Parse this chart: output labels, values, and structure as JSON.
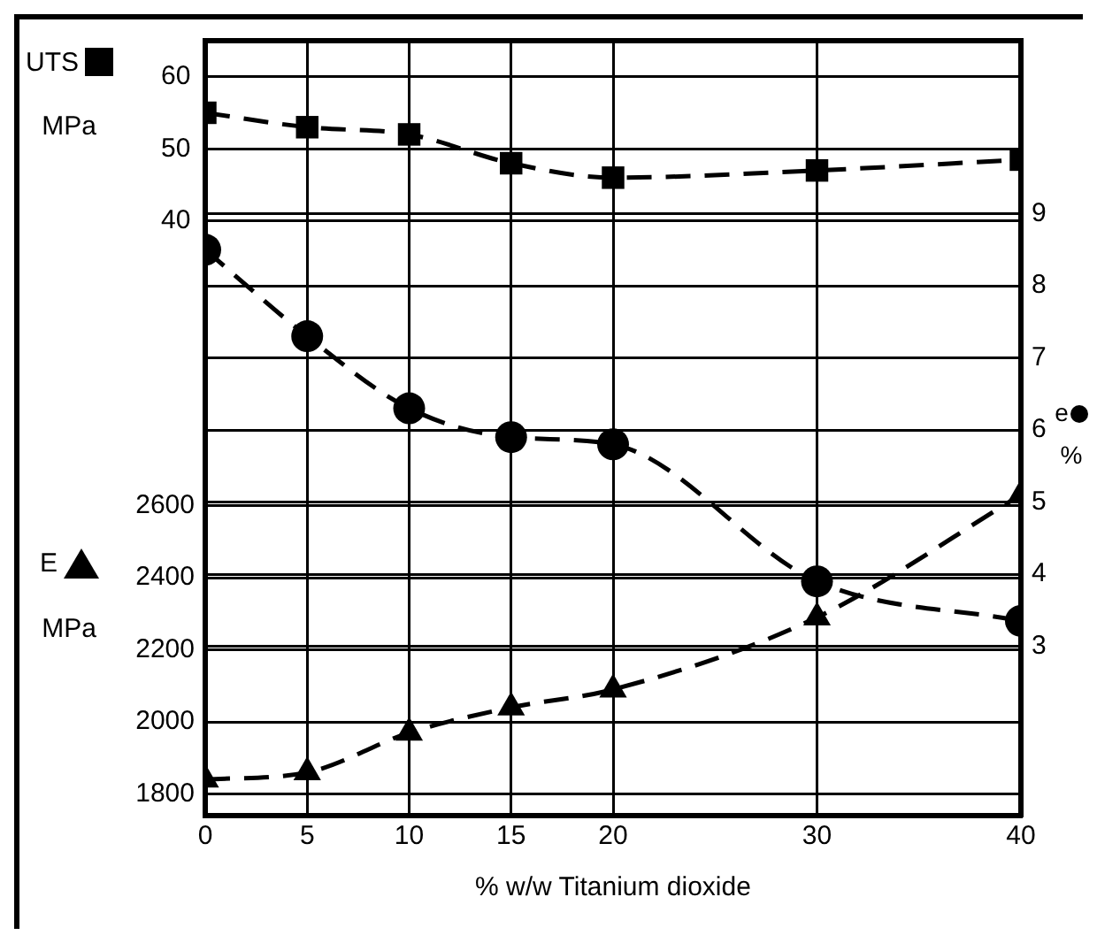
{
  "chart_data": {
    "type": "line",
    "xlabel": "% w/w Titanium dioxide",
    "ylabel": "MPa",
    "y2label": "%",
    "y3label": "MPa",
    "x": [
      0,
      5,
      10,
      15,
      20,
      30,
      40
    ],
    "xlim": [
      0,
      40
    ],
    "xticks": [
      0,
      5,
      10,
      15,
      20,
      30,
      40
    ],
    "ylim": [
      -42.5,
      65
    ],
    "yticks": [
      40,
      50,
      60
    ],
    "y2lim": [
      0.65,
      11.4
    ],
    "y2ticks": [
      3,
      4,
      5,
      6,
      7,
      8,
      9
    ],
    "y3lim": [
      1740,
      3890
    ],
    "y3ticks": [
      1800,
      2000,
      2200,
      2400,
      2600
    ],
    "grid": true,
    "line_style": "dashed",
    "legend": "left",
    "series": [
      {
        "name": "UTS",
        "color": "#000000",
        "marker": "square",
        "axis": "y",
        "values": [
          55,
          53,
          52,
          48,
          46,
          47,
          48.5
        ]
      },
      {
        "name": "e",
        "color": "#000000",
        "marker": "circle",
        "axis": "y2",
        "values": [
          8.5,
          7.3,
          6.3,
          5.9,
          5.8,
          3.9,
          3.35
        ]
      },
      {
        "name": "E",
        "color": "#000000",
        "marker": "triangle",
        "axis": "y3",
        "values": [
          1840,
          1860,
          1970,
          2040,
          2090,
          2290,
          2630
        ]
      }
    ]
  }
}
